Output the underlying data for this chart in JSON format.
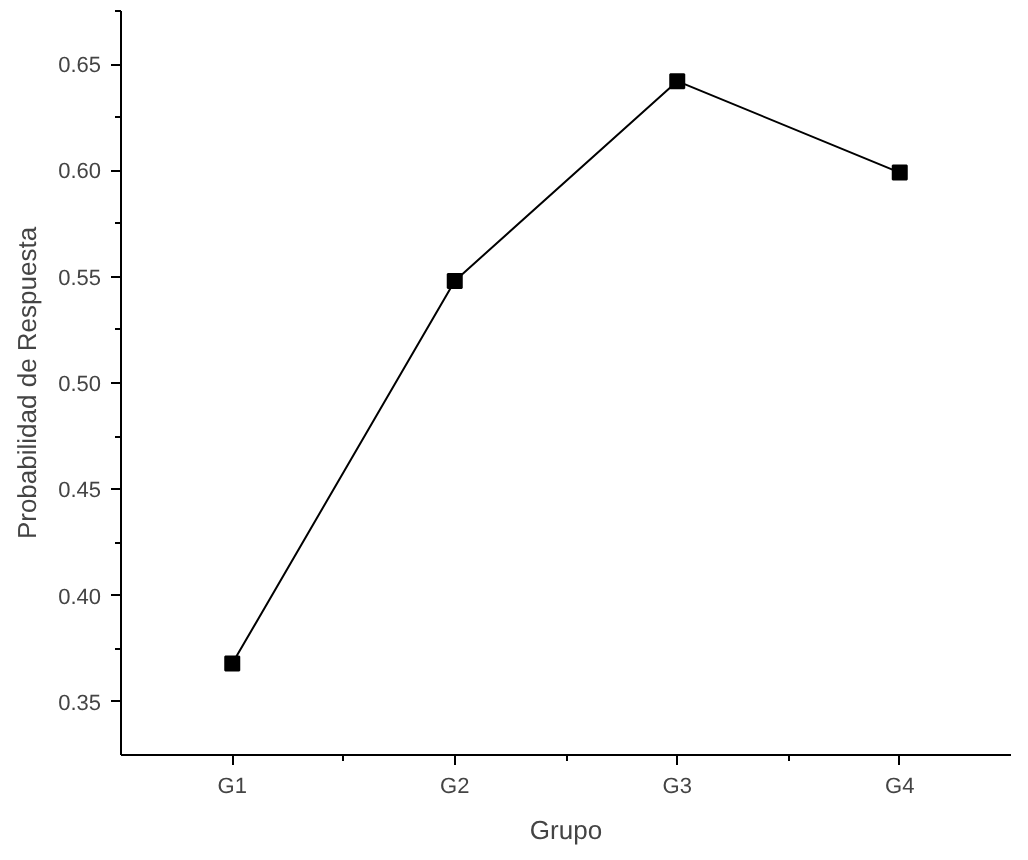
{
  "chart_data": {
    "type": "line",
    "xlabel": "Grupo",
    "ylabel": "Probabilidad de Respuesta",
    "categories": [
      "G1",
      "G2",
      "G3",
      "G4"
    ],
    "series": [
      {
        "color": "#000000",
        "values": [
          0.368,
          0.548,
          0.642,
          0.599
        ]
      }
    ],
    "ylim": [
      0.325,
      0.675
    ],
    "yticks": [
      {
        "value": 0.35,
        "label": "0.35"
      },
      {
        "value": 0.4,
        "label": "0.40"
      },
      {
        "value": 0.45,
        "label": "0.45"
      },
      {
        "value": 0.5,
        "label": "0.50"
      },
      {
        "value": 0.55,
        "label": "0.55"
      },
      {
        "value": 0.6,
        "label": "0.60"
      },
      {
        "value": 0.65,
        "label": "0.65"
      }
    ],
    "marker": "square",
    "line_style": "solid",
    "grid": false
  }
}
